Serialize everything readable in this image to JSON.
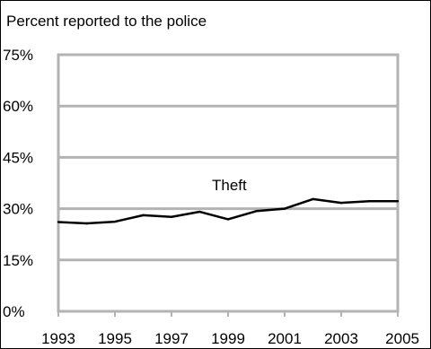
{
  "chart_data": {
    "type": "line",
    "title": "Percent reported to the police",
    "xlabel": "",
    "ylabel": "",
    "x": [
      1993,
      1994,
      1995,
      1996,
      1997,
      1998,
      1999,
      2000,
      2001,
      2002,
      2003,
      2004,
      2005
    ],
    "series": [
      {
        "name": "Theft",
        "values": [
          26.1,
          25.7,
          26.2,
          28.1,
          27.6,
          29.1,
          26.9,
          29.3,
          30.0,
          32.8,
          31.7,
          32.2,
          32.2
        ]
      }
    ],
    "xlim": [
      1993,
      2005
    ],
    "ylim": [
      0,
      75
    ],
    "x_ticks": [
      "1993",
      "1995",
      "1997",
      "1999",
      "2001",
      "2003",
      "2005"
    ],
    "y_ticks": [
      "0%",
      "15%",
      "30%",
      "45%",
      "60%",
      "75%"
    ],
    "grid": true,
    "colors": {
      "line": "#000000",
      "grid": "#b3b3b3",
      "frame": "#000000"
    }
  }
}
